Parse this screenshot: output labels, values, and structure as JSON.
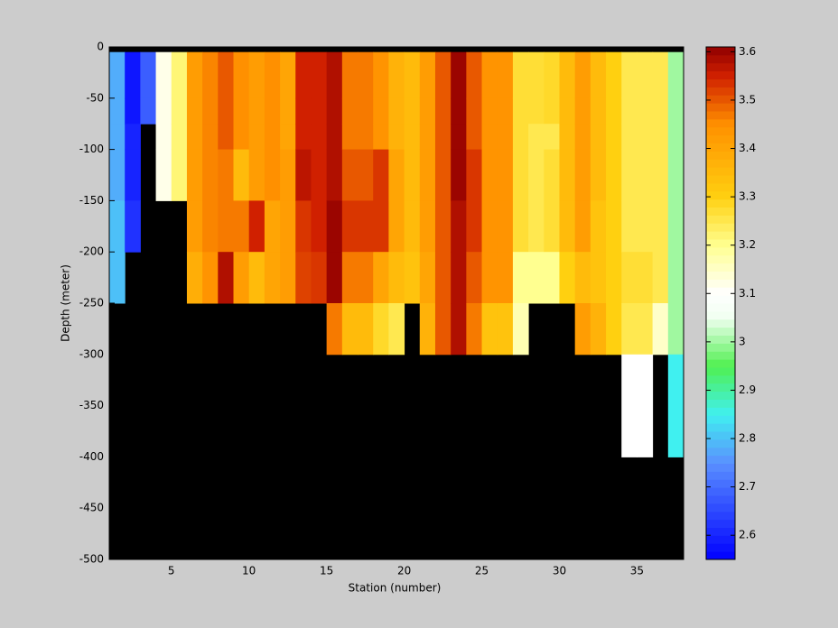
{
  "chart_data": {
    "type": "heatmap",
    "xlabel": "Station (number)",
    "ylabel": "Depth (meter)",
    "x": [
      1,
      2,
      3,
      4,
      5,
      6,
      7,
      8,
      9,
      10,
      11,
      12,
      13,
      14,
      15,
      16,
      17,
      18,
      19,
      20,
      21,
      22,
      23,
      24,
      25,
      26,
      27,
      28,
      29,
      30,
      31,
      32,
      33,
      34,
      35,
      36,
      37,
      38
    ],
    "y": [
      0,
      -5,
      -50,
      -75,
      -100,
      -150,
      -200,
      -250,
      -300,
      -400,
      -500
    ],
    "xlim": [
      1,
      38
    ],
    "ylim": [
      -500,
      0
    ],
    "xticks": [
      5,
      10,
      15,
      20,
      25,
      30,
      35
    ],
    "yticks": [
      0,
      -50,
      -100,
      -150,
      -200,
      -250,
      -300,
      -350,
      -400,
      -450,
      -500
    ],
    "clim": [
      2.55,
      3.61
    ],
    "cticks": [
      2.6,
      2.7,
      2.8,
      2.9,
      3,
      3.1,
      3.2,
      3.3,
      3.4,
      3.5,
      3.6
    ],
    "colormap": [
      [
        2.55,
        "#0000ff"
      ],
      [
        2.75,
        "#5a90ff"
      ],
      [
        2.85,
        "#40f0f0"
      ],
      [
        2.95,
        "#50f050"
      ],
      [
        3.05,
        "#f0fff0"
      ],
      [
        3.1,
        "#ffffff"
      ],
      [
        3.2,
        "#ffff90"
      ],
      [
        3.3,
        "#ffd010"
      ],
      [
        3.45,
        "#ff9000"
      ],
      [
        3.55,
        "#d02000"
      ],
      [
        3.61,
        "#900000"
      ]
    ],
    "values": [
      [
        null,
        2.78,
        2.78,
        2.78,
        2.78,
        2.8,
        2.8,
        null,
        null,
        null
      ],
      [
        null,
        2.58,
        2.58,
        2.6,
        2.6,
        2.62,
        null,
        null,
        null,
        null
      ],
      [
        null,
        2.68,
        2.68,
        null,
        null,
        null,
        null,
        null,
        null,
        null
      ],
      [
        null,
        3.12,
        3.12,
        3.12,
        3.12,
        null,
        null,
        null,
        null,
        null
      ],
      [
        null,
        3.22,
        3.22,
        3.22,
        3.22,
        null,
        null,
        null,
        null,
        null
      ],
      [
        null,
        3.42,
        3.42,
        3.42,
        3.42,
        3.42,
        3.38,
        null,
        null,
        null
      ],
      [
        null,
        3.46,
        3.46,
        3.46,
        3.46,
        3.46,
        3.44,
        null,
        null,
        null
      ],
      [
        null,
        3.5,
        3.5,
        3.5,
        3.47,
        3.47,
        3.58,
        null,
        null,
        null
      ],
      [
        null,
        3.45,
        3.45,
        3.45,
        3.35,
        3.47,
        3.42,
        null,
        null,
        null
      ],
      [
        null,
        3.42,
        3.42,
        3.42,
        3.42,
        3.55,
        3.35,
        null,
        null,
        null
      ],
      [
        null,
        3.45,
        3.45,
        3.45,
        3.45,
        3.4,
        3.4,
        null,
        null,
        null
      ],
      [
        null,
        3.4,
        3.4,
        3.4,
        3.42,
        3.42,
        3.42,
        null,
        null,
        null
      ],
      [
        null,
        3.55,
        3.55,
        3.55,
        3.57,
        3.53,
        3.52,
        null,
        null,
        null
      ],
      [
        null,
        3.55,
        3.55,
        3.55,
        3.55,
        3.55,
        3.53,
        null,
        null,
        null
      ],
      [
        null,
        3.58,
        3.58,
        3.58,
        3.58,
        3.6,
        3.6,
        3.47,
        null,
        null
      ],
      [
        null,
        3.47,
        3.47,
        3.47,
        3.5,
        3.53,
        3.47,
        3.35,
        null,
        null
      ],
      [
        null,
        3.47,
        3.47,
        3.47,
        3.5,
        3.53,
        3.47,
        3.35,
        null,
        null
      ],
      [
        null,
        3.44,
        3.44,
        3.44,
        3.53,
        3.53,
        3.4,
        3.28,
        null,
        null
      ],
      [
        null,
        3.37,
        3.37,
        3.37,
        3.4,
        3.4,
        3.35,
        3.25,
        null,
        null
      ],
      [
        null,
        3.35,
        3.35,
        3.35,
        3.35,
        3.35,
        3.33,
        null,
        null,
        null
      ],
      [
        null,
        3.42,
        3.42,
        3.42,
        3.42,
        3.42,
        3.4,
        3.37,
        null,
        null
      ],
      [
        null,
        3.5,
        3.5,
        3.5,
        3.5,
        3.5,
        3.5,
        3.5,
        null,
        null
      ],
      [
        null,
        3.6,
        3.6,
        3.6,
        3.6,
        3.58,
        3.58,
        3.58,
        null,
        null
      ],
      [
        null,
        3.5,
        3.5,
        3.5,
        3.53,
        3.53,
        3.5,
        3.47,
        null,
        null
      ],
      [
        null,
        3.44,
        3.44,
        3.44,
        3.44,
        3.44,
        3.44,
        3.33,
        null,
        null
      ],
      [
        null,
        3.44,
        3.44,
        3.44,
        3.44,
        3.44,
        3.44,
        3.33,
        null,
        null
      ],
      [
        null,
        3.27,
        3.27,
        3.27,
        3.27,
        3.27,
        3.2,
        3.17,
        null,
        null
      ],
      [
        null,
        3.27,
        3.27,
        3.25,
        3.25,
        3.25,
        3.2,
        null,
        null,
        null
      ],
      [
        null,
        3.28,
        3.28,
        3.25,
        3.27,
        3.27,
        3.2,
        null,
        null,
        null
      ],
      [
        null,
        3.35,
        3.35,
        3.35,
        3.35,
        3.35,
        3.3,
        null,
        null,
        null
      ],
      [
        null,
        3.42,
        3.42,
        3.42,
        3.42,
        3.42,
        3.35,
        3.42,
        null,
        null
      ],
      [
        null,
        3.35,
        3.35,
        3.35,
        3.35,
        3.33,
        3.33,
        3.37,
        null,
        null
      ],
      [
        null,
        3.3,
        3.3,
        3.3,
        3.3,
        3.3,
        3.3,
        3.3,
        null,
        null
      ],
      [
        null,
        3.25,
        3.25,
        3.25,
        3.25,
        3.25,
        3.27,
        3.25,
        3.1,
        null
      ],
      [
        null,
        3.25,
        3.25,
        3.25,
        3.25,
        3.25,
        3.27,
        3.25,
        3.1,
        null
      ],
      [
        null,
        3.25,
        3.25,
        3.25,
        3.25,
        3.25,
        3.25,
        3.15,
        null,
        null
      ],
      [
        null,
        3.0,
        3.0,
        3.0,
        3.0,
        3.0,
        3.0,
        3.0,
        2.85,
        null
      ]
    ]
  }
}
